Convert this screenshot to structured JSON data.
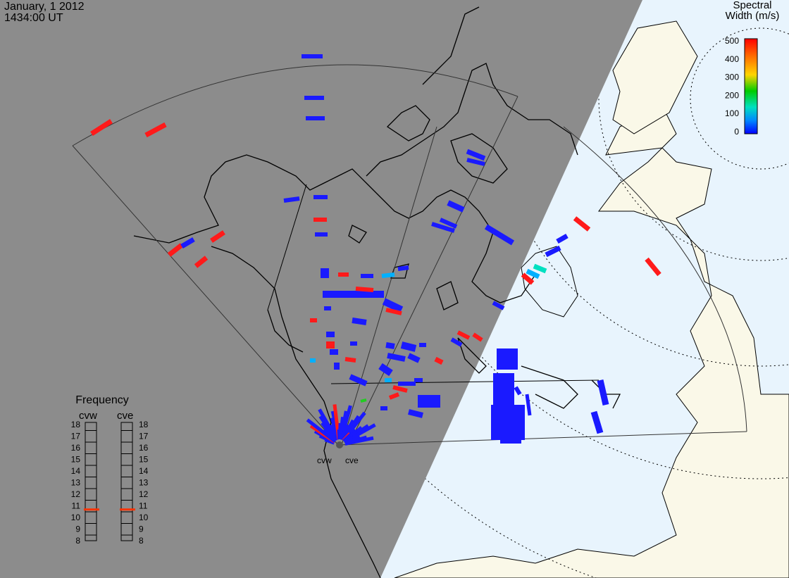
{
  "header": {
    "date": "January, 1 2012",
    "time": "1434:00 UT"
  },
  "colorbar": {
    "title_line1": "Spectral",
    "title_line2": "Width (m/s)",
    "ticks": [
      "500",
      "400",
      "300",
      "200",
      "100",
      "0"
    ],
    "colors": [
      "#ff0000",
      "#ff7a00",
      "#ffd500",
      "#00cc00",
      "#00e0c0",
      "#0088ff",
      "#0000ff"
    ]
  },
  "radars": {
    "west": "cvw",
    "east": "cve"
  },
  "frequency": {
    "title": "Frequency",
    "west_label": "cvw",
    "east_label": "cve",
    "ticks": [
      "18",
      "17",
      "16",
      "15",
      "14",
      "13",
      "12",
      "11",
      "10",
      "9",
      "8"
    ],
    "cvw_value_mhz": 10.7,
    "cve_value_mhz": 10.7,
    "indicator_color": "#ff3300"
  },
  "colors": {
    "night_shade": "#8c8c8c",
    "land_day": "#faf8e8",
    "ocean_day": "#e8f4fd",
    "coastline": "#000000",
    "low_width": "#1a1aff",
    "high_width": "#ff1a1a"
  }
}
